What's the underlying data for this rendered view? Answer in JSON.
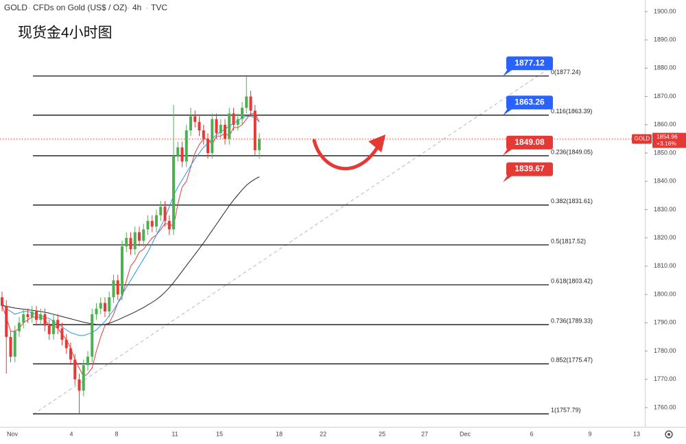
{
  "chart_data": {
    "type": "candlestick",
    "symbol": "GOLD",
    "description": "CFDs on Gold (US$ / OZ)",
    "interval": "4h",
    "source": "TVC",
    "title": "现货金4小时图",
    "ylim": [
      1753.2,
      1904.1
    ],
    "yticks": [
      {
        "value": 1760,
        "label": "1760.00"
      },
      {
        "value": 1770,
        "label": "1770.00"
      },
      {
        "value": 1780,
        "label": "1780.00"
      },
      {
        "value": 1790,
        "label": "1790.00"
      },
      {
        "value": 1800,
        "label": "1800.00"
      },
      {
        "value": 1810,
        "label": "1810.00"
      },
      {
        "value": 1820,
        "label": "1820.00"
      },
      {
        "value": 1830,
        "label": "1830.00"
      },
      {
        "value": 1840,
        "label": "1840.00"
      },
      {
        "value": 1850,
        "label": "1850.00"
      },
      {
        "value": 1860,
        "label": "1860.00"
      },
      {
        "value": 1870,
        "label": "1870.00"
      },
      {
        "value": 1880,
        "label": "1880.00"
      },
      {
        "value": 1890,
        "label": "1890.00"
      },
      {
        "value": 1900,
        "label": "1900.00"
      }
    ],
    "xtick_labels": [
      "Nov",
      "4",
      "8",
      "11",
      "15",
      "18",
      "22",
      "25",
      "27",
      "Dec",
      "6",
      "9",
      "13"
    ],
    "up_color": "#4caf50",
    "down_color": "#e53935",
    "open": [
      1799,
      1796,
      1785,
      1778,
      1787,
      1790,
      1793,
      1792,
      1794,
      1791,
      1793,
      1789,
      1786,
      1791,
      1788,
      1784,
      1781,
      1777,
      1770,
      1766,
      1775,
      1778,
      1793,
      1795,
      1797,
      1794,
      1799,
      1805,
      1800,
      1817,
      1820,
      1816,
      1822,
      1819,
      1823,
      1826,
      1824,
      1828,
      1831,
      1826,
      1823,
      1849,
      1852,
      1847,
      1858,
      1863,
      1861,
      1858,
      1855,
      1850,
      1862,
      1857,
      1860,
      1855,
      1864,
      1860,
      1862,
      1866,
      1870,
      1865,
      1851
    ],
    "high": [
      1801,
      1798,
      1787,
      1789,
      1792,
      1795,
      1795,
      1796,
      1796,
      1795,
      1795,
      1791,
      1793,
      1793,
      1790,
      1786,
      1783,
      1779,
      1772,
      1777,
      1780,
      1795,
      1797,
      1799,
      1799,
      1801,
      1807,
      1807,
      1819,
      1822,
      1822,
      1824,
      1824,
      1825,
      1828,
      1828,
      1830,
      1833,
      1833,
      1828,
      1867,
      1854,
      1854,
      1860,
      1866,
      1865,
      1863,
      1860,
      1857,
      1864,
      1864,
      1862,
      1862,
      1866,
      1866,
      1864,
      1868,
      1877.2,
      1872,
      1867,
      1857
    ],
    "low": [
      1794,
      1772,
      1776,
      1776,
      1785,
      1788,
      1790,
      1790,
      1789,
      1789,
      1787,
      1784,
      1784,
      1786,
      1782,
      1779,
      1775,
      1768,
      1758,
      1764,
      1773,
      1776,
      1791,
      1793,
      1792,
      1792,
      1797,
      1798,
      1798,
      1815,
      1814,
      1814,
      1817,
      1817,
      1821,
      1822,
      1822,
      1826,
      1824,
      1821,
      1821,
      1847,
      1845,
      1845,
      1856,
      1859,
      1856,
      1853,
      1848,
      1848,
      1855,
      1855,
      1853,
      1853,
      1858,
      1858,
      1860,
      1864,
      1863,
      1849,
      1848
    ],
    "close": [
      1796,
      1785,
      1778,
      1787,
      1790,
      1793,
      1792,
      1794,
      1791,
      1793,
      1789,
      1786,
      1791,
      1788,
      1784,
      1781,
      1777,
      1770,
      1766,
      1775,
      1778,
      1793,
      1795,
      1797,
      1794,
      1799,
      1805,
      1800,
      1817,
      1820,
      1816,
      1822,
      1819,
      1823,
      1826,
      1824,
      1828,
      1831,
      1826,
      1823,
      1849,
      1852,
      1847,
      1858,
      1863,
      1861,
      1858,
      1855,
      1850,
      1862,
      1857,
      1860,
      1855,
      1864,
      1860,
      1862,
      1866,
      1870,
      1865,
      1851,
      1854.96
    ],
    "lines": [
      {
        "color": "#e53935",
        "values": [
          1796,
          1792,
          1787,
          1787,
          1788,
          1790,
          1791,
          1792,
          1792,
          1792,
          1791,
          1789,
          1789,
          1788,
          1786,
          1784,
          1781,
          1777,
          1774,
          1771,
          1772,
          1774,
          1780,
          1785,
          1789,
          1790,
          1793,
          1797,
          1799,
          1805,
          1810,
          1812,
          1815,
          1816,
          1818,
          1820,
          1821,
          1823,
          1825,
          1825,
          1824,
          1832,
          1838,
          1840,
          1845,
          1850,
          1853,
          1855,
          1855,
          1853,
          1856,
          1856,
          1857,
          1856,
          1859,
          1859,
          1860,
          1862,
          1864,
          1864,
          1861
        ]
      },
      {
        "color": "#2196f3",
        "values": [
          1797,
          1795,
          1794,
          1793,
          1793.5,
          1794,
          1794,
          1793.5,
          1793,
          1792.5,
          1792,
          1791.5,
          1790.5,
          1789.5,
          1788.5,
          1787.5,
          1786.5,
          1786,
          1785.5,
          1785.5,
          1786,
          1786.5,
          1787.5,
          1789,
          1790.5,
          1792.5,
          1794.5,
          1797,
          1800,
          1802.5,
          1805,
          1807.5,
          1810,
          1812.5,
          1815,
          1818,
          1821,
          1824,
          1827,
          1831,
          1835,
          1838,
          1840.5,
          1843,
          1845.5,
          1848,
          1850,
          1852,
          1853.5,
          1855,
          1856.5,
          1857.5,
          1858.5,
          1859.5,
          1860.5,
          1861.5,
          1862.5,
          1863,
          1863,
          1862.5,
          1861
        ]
      },
      {
        "color": "#222222",
        "values": [
          1796,
          1795.8,
          1795.5,
          1795.2,
          1795,
          1794.8,
          1794.6,
          1794.4,
          1794.2,
          1794,
          1793.7,
          1793.4,
          1793,
          1792.6,
          1792.2,
          1791.8,
          1791.4,
          1791,
          1790.6,
          1790.2,
          1789.9,
          1789.6,
          1789.4,
          1789.3,
          1789.4,
          1789.8,
          1790.4,
          1791,
          1791.7,
          1792.4,
          1793.1,
          1793.8,
          1794.6,
          1795.4,
          1796.3,
          1797.2,
          1798.2,
          1799.4,
          1800.8,
          1802.4,
          1804.2,
          1806.2,
          1808.2,
          1810.2,
          1812.2,
          1814.2,
          1816.2,
          1818.2,
          1820.4,
          1822.6,
          1824.8,
          1827,
          1829.2,
          1831.4,
          1833.4,
          1835.2,
          1837,
          1838.6,
          1839.8,
          1840.8,
          1841.6
        ]
      }
    ],
    "fib_levels": [
      {
        "value": 1877.24,
        "label": "0(1877.24)"
      },
      {
        "value": 1863.39,
        "label": "0.116(1863.39)"
      },
      {
        "value": 1849.05,
        "label": "0.236(1849.05)"
      },
      {
        "value": 1831.61,
        "label": "0.382(1831.61)"
      },
      {
        "value": 1817.52,
        "label": "0.5(1817.52)"
      },
      {
        "value": 1803.42,
        "label": "0.618(1803.42)"
      },
      {
        "value": 1789.33,
        "label": "0.736(1789.33)"
      },
      {
        "value": 1775.47,
        "label": "0.852(1775.47)"
      },
      {
        "value": 1757.79,
        "label": "1(1757.79)"
      }
    ],
    "price_tags": [
      {
        "value": 1877.12,
        "color": "#2962ff"
      },
      {
        "value": 1863.26,
        "color": "#2962ff"
      },
      {
        "value": 1849.08,
        "color": "#e53935"
      },
      {
        "value": 1839.67,
        "color": "#e53935"
      }
    ],
    "last_price": 1854.96,
    "last_change": "+3.16%"
  }
}
